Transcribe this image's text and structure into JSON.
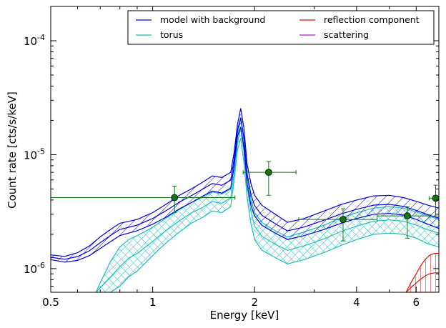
{
  "chart_data": {
    "type": "line",
    "xlabel": "Energy [keV]",
    "ylabel": "Count rate [cts/s/keV]",
    "xscale": "log",
    "yscale": "log",
    "xlim": [
      0.5,
      7.0
    ],
    "ylim": [
      6.2e-07,
      0.0002
    ],
    "x_ticks": [
      {
        "value": 0.5,
        "label": "0.5"
      },
      {
        "value": 1,
        "label": "1"
      },
      {
        "value": 2,
        "label": "2"
      },
      {
        "value": 4,
        "label": "4"
      },
      {
        "value": 6,
        "label": "6"
      }
    ],
    "y_ticks": [
      {
        "value": 1e-06,
        "base": "10",
        "exp": "-6"
      },
      {
        "value": 1e-05,
        "base": "10",
        "exp": "-5"
      },
      {
        "value": 0.0001,
        "base": "10",
        "exp": "-4"
      }
    ],
    "legend_position": "top-right",
    "colors": {
      "model": "#0000dd",
      "torus": "#1fbfbf",
      "reflection": "#dd1111",
      "scattering": "#aa22cc",
      "data": "#117711"
    },
    "series": [
      {
        "name": "model with background",
        "color": "#0000dd",
        "x": [
          0.5,
          0.55,
          0.6,
          0.65,
          0.7,
          0.75,
          0.8,
          0.85,
          0.9,
          1.0,
          1.05,
          1.1,
          1.2,
          1.3,
          1.4,
          1.5,
          1.6,
          1.7,
          1.74,
          1.78,
          1.82,
          1.86,
          1.9,
          1.95,
          2.0,
          2.1,
          2.3,
          2.5,
          2.8,
          3.2,
          3.6,
          4.0,
          4.5,
          5.0,
          5.5,
          6.0,
          6.5,
          7.0
        ],
        "upper": [
          1.32e-06,
          1.28e-06,
          1.38e-06,
          1.58e-06,
          1.9e-06,
          2.2e-06,
          2.5e-06,
          2.6e-06,
          2.7e-06,
          3.1e-06,
          3.4e-06,
          3.7e-06,
          4.4e-06,
          5e-06,
          5.7e-06,
          6.5e-06,
          6.3e-06,
          7e-06,
          1.05e-05,
          1.85e-05,
          2.55e-05,
          1.7e-05,
          8.3e-06,
          5.6e-06,
          4.4e-06,
          3.6e-06,
          3e-06,
          2.55e-06,
          2.75e-06,
          3.2e-06,
          3.65e-06,
          4e-06,
          4.35e-06,
          4.4e-06,
          4.2e-06,
          3.9e-06,
          3.6e-06,
          3.4e-06
        ],
        "lower": [
          1.2e-06,
          1.14e-06,
          1.18e-06,
          1.3e-06,
          1.5e-06,
          1.72e-06,
          1.95e-06,
          2.05e-06,
          2.15e-06,
          2.45e-06,
          2.65e-06,
          2.85e-06,
          3.35e-06,
          3.8e-06,
          4.3e-06,
          4.8e-06,
          4.6e-06,
          5.1e-06,
          8e-06,
          1.45e-05,
          1.75e-05,
          1.15e-05,
          5.6e-06,
          3.6e-06,
          2.9e-06,
          2.4e-06,
          2.05e-06,
          1.8e-06,
          1.95e-06,
          2.2e-06,
          2.5e-06,
          2.75e-06,
          3e-06,
          3.05e-06,
          2.95e-06,
          2.7e-06,
          2.45e-06,
          2.25e-06
        ]
      },
      {
        "name": "torus",
        "color": "#1fbfbf",
        "x": [
          0.68,
          0.7,
          0.75,
          0.8,
          0.85,
          0.9,
          1.0,
          1.05,
          1.1,
          1.2,
          1.3,
          1.4,
          1.5,
          1.6,
          1.7,
          1.74,
          1.78,
          1.82,
          1.86,
          1.9,
          1.95,
          2.0,
          2.1,
          2.3,
          2.5,
          2.8,
          3.2,
          3.6,
          4.0,
          4.5,
          5.0,
          5.5,
          6.0,
          6.5,
          7.0
        ],
        "upper": [
          6.2e-07,
          7.5e-07,
          1.15e-06,
          1.55e-06,
          1.8e-06,
          1.95e-06,
          2.3e-06,
          2.55e-06,
          2.8e-06,
          3.3e-06,
          3.8e-06,
          4.2e-06,
          4.7e-06,
          4.5e-06,
          5e-06,
          8e-06,
          1.5e-05,
          2.05e-05,
          1.35e-05,
          6.5e-06,
          4.1e-06,
          3.1e-06,
          2.55e-06,
          2.15e-06,
          1.9e-06,
          2.1e-06,
          2.4e-06,
          2.8e-06,
          3.1e-06,
          3.4e-06,
          3.5e-06,
          3.4e-06,
          3.15e-06,
          2.9e-06,
          2.7e-06
        ],
        "lower": [
          6.2e-07,
          6.2e-07,
          6.2e-07,
          7e-07,
          8.5e-07,
          9.5e-07,
          1.3e-06,
          1.5e-06,
          1.7e-06,
          2.1e-06,
          2.5e-06,
          2.8e-06,
          3.2e-06,
          3.1e-06,
          3.5e-06,
          6e-06,
          1.1e-05,
          1.4e-05,
          8.5e-06,
          4.2e-06,
          2.5e-06,
          1.8e-06,
          1.45e-06,
          1.25e-06,
          1.1e-06,
          1.2e-06,
          1.38e-06,
          1.6e-06,
          1.8e-06,
          2e-06,
          2.05e-06,
          2e-06,
          1.85e-06,
          1.65e-06,
          1.55e-06
        ]
      },
      {
        "name": "reflection component",
        "color": "#dd1111",
        "x": [
          5.6,
          5.8,
          6.0,
          6.2,
          6.4,
          6.6,
          6.8,
          7.0
        ],
        "upper": [
          6.2e-07,
          7.6e-07,
          9e-07,
          1.07e-06,
          1.22e-06,
          1.32e-06,
          1.36e-06,
          1.36e-06
        ],
        "lower": [
          6.2e-07,
          6.2e-07,
          6.2e-07,
          6.2e-07,
          6.2e-07,
          6.2e-07,
          6.2e-07,
          6.2e-07
        ]
      },
      {
        "name": "scattering",
        "color": "#aa22cc",
        "x": [],
        "upper": [],
        "lower": []
      }
    ],
    "data_points": [
      {
        "x": 1.16,
        "y": 4.2e-06,
        "xlo": 0.5,
        "xhi": 1.75,
        "ylo": 3.1e-06,
        "yhi": 5.3e-06
      },
      {
        "x": 2.2,
        "y": 7e-06,
        "xlo": 1.85,
        "xhi": 2.65,
        "ylo": 4.4e-06,
        "yhi": 8.7e-06
      },
      {
        "x": 3.65,
        "y": 2.7e-06,
        "xlo": 2.7,
        "xhi": 4.6,
        "ylo": 1.75e-06,
        "yhi": 3.35e-06
      },
      {
        "x": 5.65,
        "y": 2.9e-06,
        "xlo": 4.6,
        "xhi": 6.6,
        "ylo": 1.85e-06,
        "yhi": 3.5e-06
      },
      {
        "x": 6.85,
        "y": 4.15e-06,
        "xlo": 6.55,
        "xhi": 7.0,
        "ylo": 2.9e-06,
        "yhi": 5.4e-06
      }
    ]
  }
}
